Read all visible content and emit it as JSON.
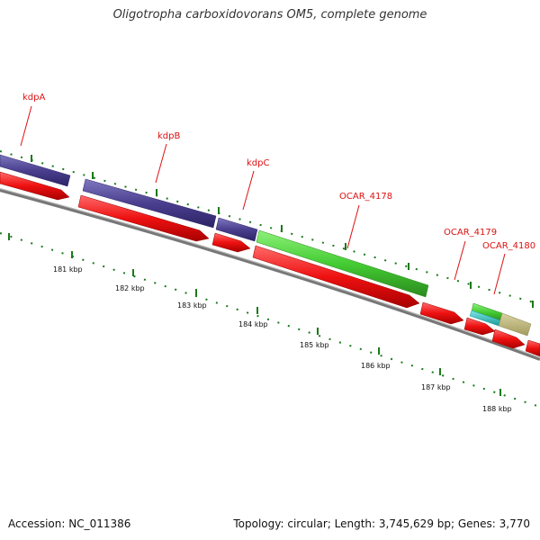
{
  "title": "Oligotropha carboxidovorans OM5, complete genome",
  "footer": {
    "accession": "Accession: NC_011386",
    "topology": "Topology: circular; Length: 3,745,629 bp; Genes: 3,770"
  },
  "gene_labels": [
    {
      "name": "kdpA"
    },
    {
      "name": "kdpB"
    },
    {
      "name": "kdpC"
    },
    {
      "name": "OCAR_4178"
    },
    {
      "name": "OCAR_4179"
    },
    {
      "name": "OCAR_4180"
    }
  ],
  "scale_ticks": [
    {
      "label": "181 kbp"
    },
    {
      "label": "182 kbp"
    },
    {
      "label": "183 kbp"
    },
    {
      "label": "184 kbp"
    },
    {
      "label": "185 kbp"
    },
    {
      "label": "186 kbp"
    },
    {
      "label": "187 kbp"
    },
    {
      "label": "188 kbp"
    }
  ],
  "colors": {
    "cds": "#ee1111",
    "kdp": "#4a3f8e",
    "ocar4178": "#44cc33",
    "ocar4179": "#22bbbb",
    "ocar4180": "#bdb57a",
    "backbone": "#888888",
    "ticks": "#1a7a1a",
    "labels": "#dd1111"
  }
}
